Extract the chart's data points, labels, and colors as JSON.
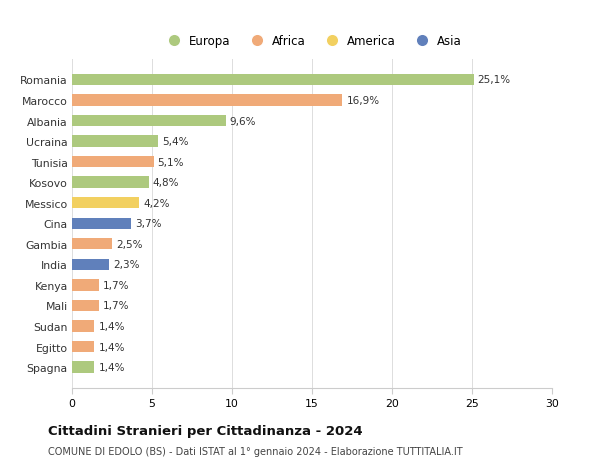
{
  "countries": [
    "Romania",
    "Marocco",
    "Albania",
    "Ucraina",
    "Tunisia",
    "Kosovo",
    "Messico",
    "Cina",
    "Gambia",
    "India",
    "Kenya",
    "Mali",
    "Sudan",
    "Egitto",
    "Spagna"
  ],
  "values": [
    25.1,
    16.9,
    9.6,
    5.4,
    5.1,
    4.8,
    4.2,
    3.7,
    2.5,
    2.3,
    1.7,
    1.7,
    1.4,
    1.4,
    1.4
  ],
  "labels": [
    "25,1%",
    "16,9%",
    "9,6%",
    "5,4%",
    "5,1%",
    "4,8%",
    "4,2%",
    "3,7%",
    "2,5%",
    "2,3%",
    "1,7%",
    "1,7%",
    "1,4%",
    "1,4%",
    "1,4%"
  ],
  "continent": [
    "Europa",
    "Africa",
    "Europa",
    "Europa",
    "Africa",
    "Europa",
    "America",
    "Asia",
    "Africa",
    "Asia",
    "Africa",
    "Africa",
    "Africa",
    "Africa",
    "Europa"
  ],
  "colors": {
    "Europa": "#adc97e",
    "Africa": "#f0aa78",
    "America": "#f2d060",
    "Asia": "#6080bb"
  },
  "title": "Cittadini Stranieri per Cittadinanza - 2024",
  "subtitle": "COMUNE DI EDOLO (BS) - Dati ISTAT al 1° gennaio 2024 - Elaborazione TUTTITALIA.IT",
  "xlim": [
    0,
    30
  ],
  "xticks": [
    0,
    5,
    10,
    15,
    20,
    25,
    30
  ],
  "background_color": "#ffffff",
  "grid_color": "#dddddd",
  "legend_order": [
    "Europa",
    "Africa",
    "America",
    "Asia"
  ]
}
